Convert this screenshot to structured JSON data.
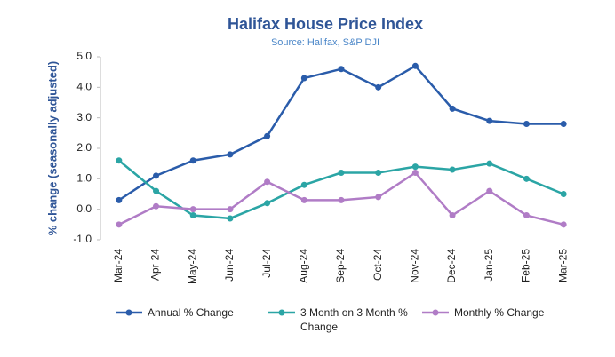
{
  "chart_data": {
    "type": "line",
    "title": "Halifax House Price Index",
    "subtitle": "Source: Halifax, S&P DJI",
    "y_label": "% change (seasonally adjusted)",
    "categories": [
      "Mar-24",
      "Apr-24",
      "May-24",
      "Jun-24",
      "Jul-24",
      "Aug-24",
      "Sep-24",
      "Oct-24",
      "Nov-24",
      "Dec-24",
      "Jan-25",
      "Feb-25",
      "Mar-25"
    ],
    "series": [
      {
        "name": "Annual % Change",
        "color": "#2a5caa",
        "values": [
          0.3,
          1.1,
          1.6,
          1.8,
          2.4,
          4.3,
          4.6,
          4.0,
          4.7,
          3.3,
          2.9,
          2.8,
          2.8
        ]
      },
      {
        "name": "3 Month on 3 Month % Change",
        "color": "#2ba5a5",
        "values": [
          1.6,
          0.6,
          -0.2,
          -0.3,
          0.2,
          0.8,
          1.2,
          1.2,
          1.4,
          1.3,
          1.5,
          1.0,
          0.5
        ]
      },
      {
        "name": "Monthly % Change",
        "color": "#b07cc6",
        "values": [
          -0.5,
          0.1,
          0.0,
          0.0,
          0.9,
          0.3,
          0.3,
          0.4,
          1.2,
          -0.2,
          0.6,
          -0.2,
          -0.5
        ]
      }
    ],
    "ylim": [
      -1,
      5
    ],
    "yticks": [
      {
        "value": -1,
        "label": "-1.0"
      },
      {
        "value": 0,
        "label": "0.0"
      },
      {
        "value": 1,
        "label": "1.0"
      },
      {
        "value": 2,
        "label": "2.0"
      },
      {
        "value": 3,
        "label": "3.0"
      },
      {
        "value": 4,
        "label": "4.0"
      },
      {
        "value": 5,
        "label": "5.0"
      }
    ],
    "legend": "bottom"
  }
}
